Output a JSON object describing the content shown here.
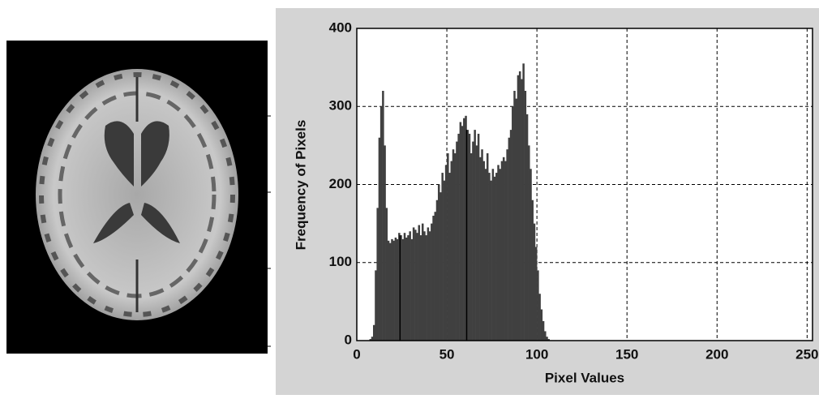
{
  "chart_data": {
    "type": "histogram",
    "xlabel": "Pixel Values",
    "ylabel": "Frequency of Pixels",
    "color": "#404040",
    "grid": true,
    "xlim": [
      0,
      253
    ],
    "xticks": [
      0,
      50,
      100,
      150,
      200,
      250
    ],
    "ylim": [
      0,
      400
    ],
    "yticks": [
      0,
      100,
      200,
      300,
      400
    ],
    "bins": [
      7,
      8,
      9,
      10,
      11,
      12,
      13,
      14,
      15,
      16,
      17,
      18,
      19,
      20,
      21,
      22,
      23,
      24,
      25,
      26,
      27,
      28,
      29,
      30,
      31,
      32,
      33,
      34,
      35,
      36,
      37,
      38,
      39,
      40,
      41,
      42,
      43,
      44,
      45,
      46,
      47,
      48,
      49,
      50,
      51,
      52,
      53,
      54,
      55,
      56,
      57,
      58,
      59,
      60,
      61,
      62,
      63,
      64,
      65,
      66,
      67,
      68,
      69,
      70,
      71,
      72,
      73,
      74,
      75,
      76,
      77,
      78,
      79,
      80,
      81,
      82,
      83,
      84,
      85,
      86,
      87,
      88,
      89,
      90,
      91,
      92,
      93,
      94,
      95,
      96,
      97,
      98,
      99,
      100,
      101,
      102,
      103,
      104,
      105,
      106,
      107
    ],
    "values": [
      2,
      5,
      20,
      90,
      170,
      260,
      300,
      320,
      250,
      170,
      128,
      125,
      130,
      128,
      132,
      130,
      138,
      135,
      130,
      138,
      132,
      135,
      140,
      130,
      145,
      142,
      138,
      148,
      135,
      150,
      140,
      135,
      145,
      140,
      150,
      160,
      165,
      180,
      200,
      190,
      215,
      205,
      225,
      240,
      215,
      230,
      245,
      240,
      255,
      265,
      280,
      275,
      285,
      288,
      270,
      265,
      240,
      255,
      270,
      250,
      265,
      235,
      245,
      230,
      220,
      240,
      215,
      205,
      220,
      210,
      215,
      225,
      220,
      230,
      235,
      230,
      245,
      260,
      270,
      300,
      320,
      310,
      340,
      345,
      335,
      355,
      320,
      290,
      250,
      220,
      180,
      150,
      120,
      90,
      60,
      40,
      25,
      12,
      5,
      2
    ],
    "threshold_lines": [
      24,
      61
    ]
  }
}
